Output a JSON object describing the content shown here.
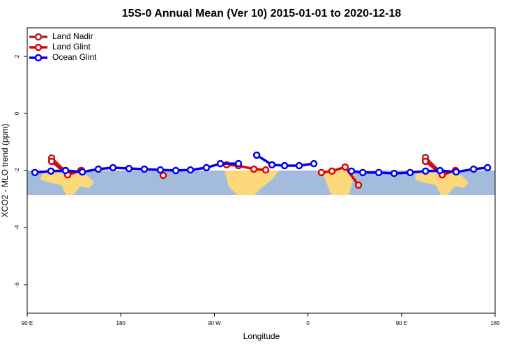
{
  "chart_data": {
    "type": "line",
    "title": "15S-0 Annual Mean (Ver 10)   2015-01-01 to 2020-12-18",
    "x_label": "Longitude",
    "y_label": "XCO2 - MLO trend (ppm)",
    "xlim": [
      90,
      540
    ],
    "xticks": [
      {
        "value": 90,
        "label": "90 E"
      },
      180,
      {
        "value": 270,
        "label": "90 W"
      },
      {
        "value": 360,
        "label": "0"
      },
      {
        "value": 450,
        "label": "90 E"
      },
      {
        "value": 540,
        "label": "180"
      }
    ],
    "ylim": [
      -7,
      3
    ],
    "yticks": [
      -6,
      -4,
      -2,
      0,
      2
    ],
    "legend": "top-left",
    "series": [
      {
        "name": "Land Nadir",
        "color": "#a52a2a",
        "x": [
          113.5,
          128.9,
          141.6,
          null,
          293.2,
          null,
          473.0,
          489.1,
          501.8
        ],
        "values": [
          -1.56,
          -2.1,
          -2.0,
          null,
          -1.76,
          null,
          -1.54,
          -2.12,
          -2.0
        ]
      },
      {
        "name": "Land Glint",
        "color": "#e00000",
        "x": [
          113.5,
          128.9,
          142.3,
          null,
          220.8,
          null,
          281.8,
          293.2,
          308.0,
          319.4,
          null,
          373.0,
          383.1,
          395.8,
          408.6,
          null,
          473.0,
          489.1,
          501.8
        ],
        "values": [
          -1.68,
          -2.15,
          -2.0,
          null,
          -2.17,
          null,
          -1.8,
          -1.83,
          -1.95,
          -1.98,
          null,
          -2.07,
          -2.02,
          -1.88,
          -2.51,
          null,
          -1.68,
          -2.15,
          -2.0
        ]
      },
      {
        "name": "Ocean Glint",
        "color": "#0000ee",
        "x": [
          97.4,
          112.8,
          126.9,
          143.0,
          158.4,
          172.5,
          187.9,
          202.7,
          218.1,
          232.9,
          247.0,
          262.4,
          275.8,
          293.2,
          null,
          310.7,
          325.4,
          337.5,
          351.6,
          365.7,
          null,
          401.9,
          412.7,
          428.1,
          442.9,
          458.3,
          473.1,
          487.0,
          502.5,
          519.3,
          532.7
        ],
        "values": [
          -2.07,
          -2.02,
          -2.0,
          -2.05,
          -1.95,
          -1.9,
          -1.93,
          -1.95,
          -1.98,
          -2.0,
          -1.98,
          -1.9,
          -1.76,
          -1.76,
          null,
          -1.46,
          -1.8,
          -1.83,
          -1.83,
          -1.76,
          null,
          -2.02,
          -2.07,
          -2.07,
          -2.1,
          -2.07,
          -2.02,
          -2.0,
          -2.05,
          -1.95,
          -1.9
        ]
      }
    ]
  }
}
